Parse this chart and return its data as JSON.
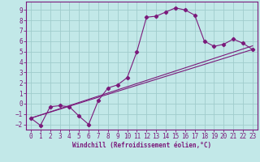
{
  "xlabel": "Windchill (Refroidissement éolien,°C)",
  "bg_color": "#c2e8e8",
  "grid_color": "#a0cccc",
  "line_color": "#7b1a7b",
  "spine_color": "#7b1a7b",
  "xlim": [
    -0.5,
    23.5
  ],
  "ylim": [
    -2.5,
    9.8
  ],
  "xticks": [
    0,
    1,
    2,
    3,
    4,
    5,
    6,
    7,
    8,
    9,
    10,
    11,
    12,
    13,
    14,
    15,
    16,
    17,
    18,
    19,
    20,
    21,
    22,
    23
  ],
  "yticks": [
    -2,
    -1,
    0,
    1,
    2,
    3,
    4,
    5,
    6,
    7,
    8,
    9
  ],
  "curve1_x": [
    0,
    1,
    2,
    3,
    4,
    5,
    6,
    7,
    8,
    9,
    10,
    11,
    12,
    13,
    14,
    15,
    16,
    17,
    18,
    19,
    20,
    21,
    22,
    23
  ],
  "curve1_y": [
    -1.4,
    -2.1,
    -0.3,
    -0.2,
    -0.3,
    -1.2,
    -2.0,
    0.3,
    1.5,
    1.8,
    2.5,
    5.0,
    8.3,
    8.4,
    8.8,
    9.2,
    9.0,
    8.5,
    6.0,
    5.5,
    5.7,
    6.2,
    5.8,
    5.2
  ],
  "curve2_x": [
    0,
    23
  ],
  "curve2_y": [
    -1.4,
    5.2
  ],
  "curve3_x": [
    0,
    23
  ],
  "curve3_y": [
    -1.4,
    5.55
  ],
  "tick_fontsize": 5.5,
  "xlabel_fontsize": 5.5
}
